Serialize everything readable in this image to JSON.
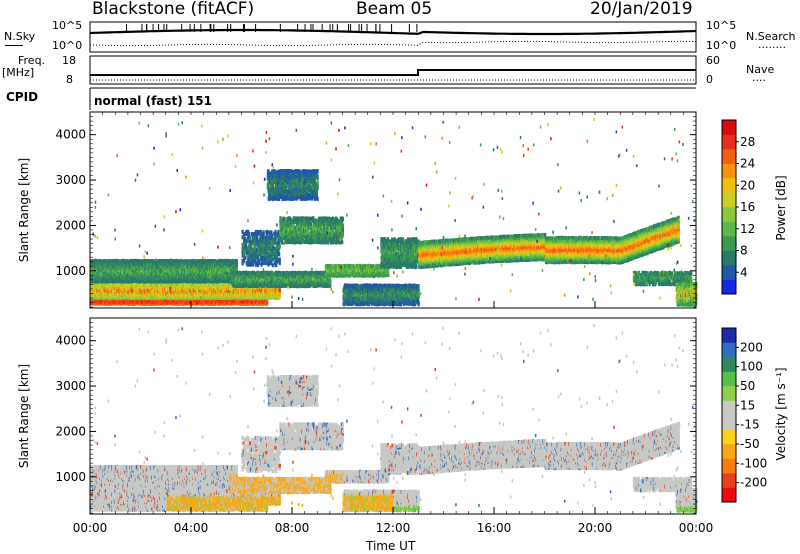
{
  "header": {
    "station": "Blackstone (fitACF)",
    "beam": "Beam 05",
    "date": "20/Jan/2019"
  },
  "top_panels": {
    "nsky_label": "N.Sky",
    "nsearch_label": "N.Search",
    "nsky_hi": "10^5",
    "nsky_lo": "10^0",
    "nsearch_hi": "10^5",
    "nsearch_lo": "10^0",
    "freq_label": "Freq.",
    "freq_unit": "[MHz]",
    "freq_hi": "18",
    "freq_lo": "8",
    "nave_label": "Nave",
    "nave_hi": "60",
    "nave_lo": "0",
    "cpid_label": "CPID",
    "cpid_value": "normal (fast) 151",
    "dotted_legend": "........",
    "nave_dotted": "...."
  },
  "chart_data": [
    {
      "type": "heatmap",
      "name": "power-panel",
      "ylabel": "Slant Range [km]",
      "ylim": [
        180,
        4500
      ],
      "yticks": [
        "1000",
        "2000",
        "3000",
        "4000"
      ],
      "colorbar_label": "Power [dB]",
      "colorbar_ticks": [
        "4",
        "8",
        "12",
        "16",
        "20",
        "24",
        "28"
      ],
      "colorbar_range": [
        0,
        30
      ],
      "colorbar_colors": [
        "#1428e6",
        "#2058a8",
        "#2a7a6a",
        "#3a9a50",
        "#5ab84a",
        "#8ac83a",
        "#c8d022",
        "#f0c010",
        "#f89010",
        "#f06010",
        "#e83018",
        "#d80c0c"
      ]
    },
    {
      "type": "heatmap",
      "name": "velocity-panel",
      "ylabel": "Slant Range [km]",
      "ylim": [
        180,
        4500
      ],
      "yticks": [
        "1000",
        "2000",
        "3000",
        "4000"
      ],
      "colorbar_label": "Velocity [m s⁻¹]",
      "colorbar_ticks": [
        "200",
        "100",
        "50",
        "15",
        "-15",
        "-50",
        "-100",
        "-200"
      ],
      "colorbar_colors": [
        "#1c2ca8",
        "#2f6fbf",
        "#2e8a5a",
        "#52c04a",
        "#8fd04a",
        "#c8c8c4",
        "#c8c8c4",
        "#f8d21c",
        "#f8a814",
        "#f87c10",
        "#e84018",
        "#e80c0c"
      ]
    }
  ],
  "xaxis": {
    "label": "Time UT",
    "ticks": [
      "00:00",
      "04:00",
      "08:00",
      "12:00",
      "16:00",
      "20:00",
      "00:00"
    ]
  },
  "colors": {
    "power_main_band": "#3a8a4a",
    "velocity_gray": "#c4c4c0",
    "velocity_orange": "#f8a814"
  }
}
